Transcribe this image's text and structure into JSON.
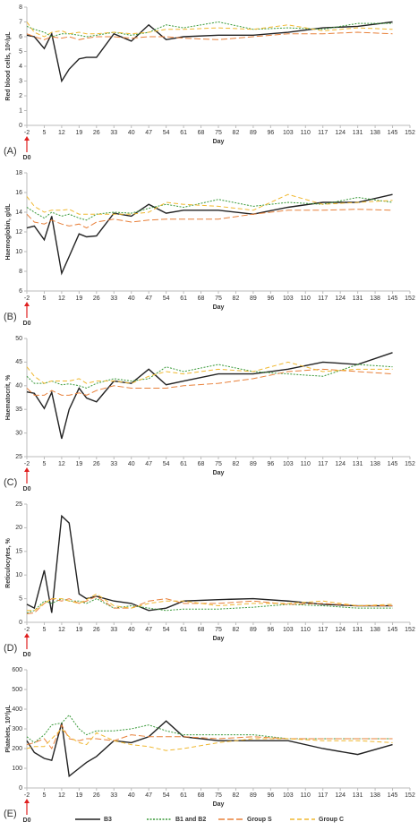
{
  "chart_data": [
    {
      "type": "line",
      "panel_label": "(A)",
      "ylabel": "Red blood cells, 10⁶/μL",
      "xlabel": "Day",
      "annotation": "D0",
      "x": [
        -2,
        1,
        5,
        8,
        12,
        15,
        19,
        22,
        26,
        33,
        40,
        47,
        54,
        61,
        75,
        89,
        103,
        117,
        131,
        145
      ],
      "xlim": [
        -2,
        152
      ],
      "xticks": [
        -2,
        5,
        12,
        19,
        26,
        33,
        40,
        47,
        54,
        61,
        68,
        75,
        82,
        89,
        96,
        103,
        110,
        117,
        124,
        131,
        138,
        145,
        152
      ],
      "ylim": [
        0,
        8
      ],
      "yticks": [
        0,
        1,
        2,
        3,
        4,
        5,
        6,
        7,
        8
      ],
      "series": [
        {
          "values": [
            6.1,
            6.0,
            5.2,
            6.2,
            3.0,
            3.8,
            4.5,
            4.6,
            4.6,
            6.2,
            5.7,
            6.8,
            5.8,
            6.0,
            6.1,
            6.1,
            6.3,
            6.6,
            6.7,
            7.0
          ]
        },
        {
          "values": [
            6.7,
            6.5,
            6.3,
            6.0,
            6.2,
            6.2,
            6.1,
            6.0,
            6.1,
            6.3,
            6.1,
            6.3,
            6.8,
            6.6,
            7.0,
            6.5,
            6.6,
            6.5,
            6.9,
            6.9
          ]
        },
        {
          "values": [
            6.2,
            6.0,
            5.8,
            6.0,
            5.9,
            6.0,
            5.8,
            5.9,
            6.0,
            6.0,
            5.9,
            6.0,
            6.0,
            5.9,
            5.8,
            6.0,
            6.2,
            6.2,
            6.3,
            6.2
          ]
        },
        {
          "values": [
            7.0,
            6.3,
            6.0,
            6.3,
            6.4,
            6.2,
            6.3,
            6.2,
            6.2,
            6.3,
            6.2,
            6.3,
            6.5,
            6.5,
            6.6,
            6.5,
            6.8,
            6.4,
            6.6,
            6.5
          ]
        }
      ]
    },
    {
      "type": "line",
      "panel_label": "(B)",
      "ylabel": "Haemoglobin, g/dL",
      "xlabel": "Day",
      "annotation": "D0",
      "x": [
        -2,
        1,
        5,
        8,
        12,
        15,
        19,
        22,
        26,
        33,
        40,
        47,
        54,
        61,
        75,
        89,
        103,
        117,
        131,
        145
      ],
      "xlim": [
        -2,
        152
      ],
      "xticks": [
        -2,
        5,
        12,
        19,
        26,
        33,
        40,
        47,
        54,
        61,
        68,
        75,
        82,
        89,
        96,
        103,
        110,
        117,
        124,
        131,
        138,
        145,
        152
      ],
      "ylim": [
        6,
        18
      ],
      "yticks": [
        6,
        8,
        10,
        12,
        14,
        16,
        18
      ],
      "series": [
        {
          "values": [
            12.4,
            12.6,
            11.2,
            13.6,
            7.8,
            9.5,
            11.8,
            11.5,
            11.6,
            13.9,
            13.6,
            14.8,
            13.9,
            14.2,
            14.2,
            13.8,
            14.5,
            15.0,
            15.0,
            15.8
          ]
        },
        {
          "values": [
            14.5,
            14.0,
            13.4,
            14.0,
            13.6,
            13.8,
            13.4,
            13.2,
            13.8,
            14.0,
            13.9,
            14.4,
            14.8,
            14.5,
            15.3,
            14.6,
            15.0,
            14.8,
            15.5,
            15.0
          ]
        },
        {
          "values": [
            13.8,
            13.0,
            12.8,
            13.2,
            12.8,
            12.6,
            12.8,
            12.4,
            13.0,
            13.3,
            13.0,
            13.2,
            13.3,
            13.3,
            13.3,
            13.8,
            14.2,
            14.2,
            14.3,
            14.2
          ]
        },
        {
          "values": [
            15.6,
            14.6,
            14.0,
            14.2,
            14.2,
            14.3,
            13.8,
            13.8,
            13.8,
            13.8,
            13.8,
            14.0,
            15.0,
            14.8,
            14.6,
            14.2,
            15.8,
            14.8,
            15.0,
            15.2
          ]
        }
      ]
    },
    {
      "type": "line",
      "panel_label": "(C)",
      "ylabel": "Haematocrit, %",
      "xlabel": "Day",
      "annotation": "D0",
      "x": [
        -2,
        1,
        5,
        8,
        12,
        15,
        19,
        22,
        26,
        33,
        40,
        47,
        54,
        61,
        75,
        89,
        103,
        117,
        131,
        145
      ],
      "xlim": [
        -2,
        152
      ],
      "xticks": [
        -2,
        5,
        12,
        19,
        26,
        33,
        40,
        47,
        54,
        61,
        68,
        75,
        82,
        89,
        96,
        103,
        110,
        117,
        124,
        131,
        138,
        145,
        152
      ],
      "ylim": [
        25,
        50
      ],
      "yticks": [
        25,
        30,
        35,
        40,
        45,
        50
      ],
      "series": [
        {
          "values": [
            38.7,
            38.4,
            35.2,
            38.6,
            28.8,
            35.0,
            39.5,
            37.4,
            36.6,
            41.0,
            40.5,
            43.5,
            40.2,
            41.0,
            42.5,
            42.5,
            43.5,
            45.0,
            44.5,
            47.0
          ]
        },
        {
          "values": [
            42.0,
            40.5,
            40.5,
            41.0,
            40.2,
            40.4,
            40.0,
            39.5,
            40.5,
            41.5,
            41.0,
            41.5,
            44.0,
            43.0,
            44.5,
            43.0,
            42.5,
            42.0,
            44.5,
            44.0
          ]
        },
        {
          "values": [
            39.5,
            38.0,
            38.0,
            39.0,
            38.0,
            38.0,
            38.5,
            38.0,
            39.0,
            40.0,
            39.5,
            39.5,
            39.5,
            40.0,
            40.5,
            41.5,
            43.0,
            43.5,
            43.0,
            42.5
          ]
        },
        {
          "values": [
            44.0,
            42.0,
            40.5,
            41.0,
            41.0,
            41.0,
            41.5,
            40.5,
            41.0,
            41.0,
            40.5,
            42.0,
            43.0,
            42.5,
            43.5,
            43.0,
            45.0,
            43.0,
            43.5,
            43.5
          ]
        }
      ]
    },
    {
      "type": "line",
      "panel_label": "(D)",
      "ylabel": "Reticulocytes, %",
      "xlabel": "Day",
      "annotation": "D0",
      "x": [
        -2,
        1,
        5,
        8,
        12,
        15,
        19,
        22,
        26,
        33,
        40,
        47,
        54,
        61,
        75,
        89,
        103,
        117,
        131,
        145
      ],
      "xlim": [
        -2,
        152
      ],
      "xticks": [
        -2,
        5,
        12,
        19,
        26,
        33,
        40,
        47,
        54,
        61,
        68,
        75,
        82,
        89,
        96,
        103,
        110,
        117,
        124,
        131,
        138,
        145,
        152
      ],
      "ylim": [
        0,
        25
      ],
      "yticks": [
        0,
        5,
        10,
        15,
        20,
        25
      ],
      "series": [
        {
          "values": [
            3.8,
            3.0,
            11.0,
            2.0,
            22.5,
            21.0,
            6.0,
            5.0,
            5.5,
            4.5,
            4.0,
            2.5,
            3.0,
            4.5,
            4.8,
            5.0,
            4.5,
            3.8,
            3.5,
            3.5
          ]
        },
        {
          "values": [
            2.0,
            2.5,
            4.5,
            4.0,
            5.0,
            4.5,
            4.5,
            4.0,
            5.0,
            3.0,
            3.5,
            3.0,
            2.5,
            2.8,
            2.8,
            3.2,
            3.8,
            3.5,
            3.0,
            3.0
          ]
        },
        {
          "values": [
            1.8,
            2.0,
            4.0,
            5.0,
            4.5,
            5.0,
            4.0,
            4.5,
            5.5,
            3.0,
            3.0,
            4.5,
            5.0,
            4.0,
            4.0,
            4.5,
            3.8,
            4.0,
            3.5,
            3.5
          ]
        },
        {
          "values": [
            2.5,
            2.5,
            4.0,
            5.0,
            5.0,
            4.5,
            4.0,
            4.8,
            6.0,
            3.5,
            3.0,
            4.0,
            4.5,
            4.5,
            3.5,
            4.0,
            4.0,
            4.5,
            3.5,
            3.8
          ]
        }
      ]
    },
    {
      "type": "line",
      "panel_label": "(E)",
      "ylabel": "Platelets, 10³/μL",
      "xlabel": "Day",
      "annotation": "D0",
      "x": [
        -2,
        1,
        5,
        8,
        12,
        15,
        19,
        22,
        26,
        33,
        40,
        47,
        54,
        61,
        75,
        89,
        103,
        117,
        131,
        145
      ],
      "xlim": [
        -2,
        152
      ],
      "xticks": [
        -2,
        5,
        12,
        19,
        26,
        33,
        40,
        47,
        54,
        61,
        68,
        75,
        82,
        89,
        96,
        103,
        110,
        117,
        124,
        131,
        138,
        145,
        152
      ],
      "ylim": [
        0,
        600
      ],
      "yticks": [
        0,
        100,
        200,
        300,
        400,
        500,
        600
      ],
      "series": [
        {
          "values": [
            240,
            180,
            150,
            140,
            330,
            60,
            100,
            130,
            160,
            240,
            230,
            260,
            340,
            260,
            240,
            240,
            240,
            200,
            170,
            220
          ]
        },
        {
          "values": [
            260,
            230,
            270,
            320,
            330,
            370,
            300,
            270,
            290,
            290,
            300,
            320,
            290,
            270,
            270,
            270,
            250,
            250,
            250,
            250
          ]
        },
        {
          "values": [
            220,
            230,
            250,
            200,
            320,
            250,
            240,
            250,
            250,
            240,
            270,
            260,
            260,
            260,
            250,
            260,
            250,
            250,
            250,
            250
          ]
        },
        {
          "values": [
            200,
            210,
            210,
            250,
            300,
            260,
            230,
            220,
            280,
            240,
            220,
            210,
            190,
            200,
            230,
            250,
            250,
            240,
            240,
            230
          ]
        }
      ]
    }
  ],
  "legend": [
    {
      "name": "B3",
      "color": "#222222",
      "dash": "none"
    },
    {
      "name": "B1 and B2",
      "color": "#3a9a3a",
      "dash": "2,1.5"
    },
    {
      "name": "Group S",
      "color": "#e8803a",
      "dash": "7,3"
    },
    {
      "name": "Group C",
      "color": "#f0b830",
      "dash": "5,3"
    }
  ]
}
